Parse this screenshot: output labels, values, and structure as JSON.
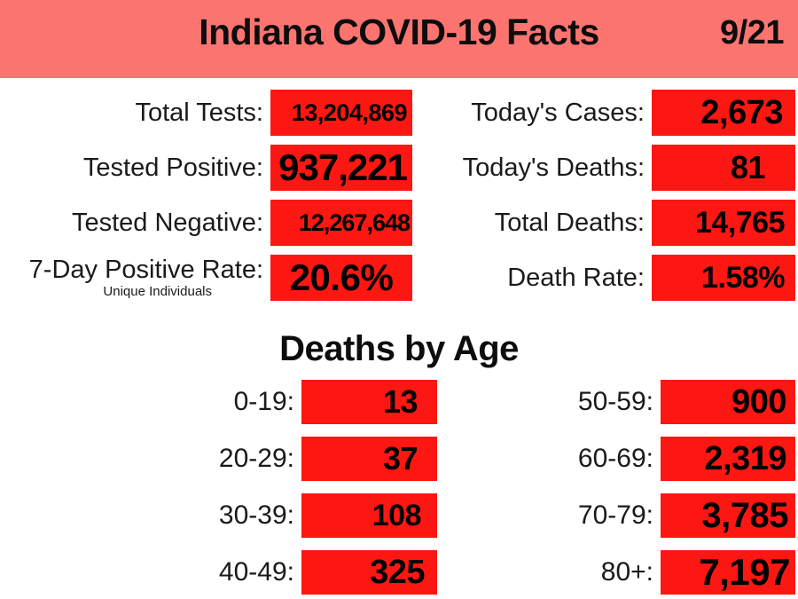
{
  "header": {
    "title": "Indiana COVID-19 Facts",
    "date": "9/21"
  },
  "stats": {
    "left": [
      {
        "label": "Total Tests:",
        "value": "13,204,869"
      },
      {
        "label": "Tested Positive:",
        "value": "937,221"
      },
      {
        "label": "Tested Negative:",
        "value": "12,267,648"
      },
      {
        "label": "7-Day Positive Rate:",
        "value": "20.6%",
        "sublabel": "Unique Individuals"
      }
    ],
    "right": [
      {
        "label": "Today's Cases:",
        "value": "2,673"
      },
      {
        "label": "Today's Deaths:",
        "value": "81"
      },
      {
        "label": "Total Deaths:",
        "value": "14,765"
      },
      {
        "label": "Death Rate:",
        "value": "1.58%"
      }
    ]
  },
  "deaths_by_age": {
    "title": "Deaths by Age",
    "left": [
      {
        "label": "0-19:",
        "value": "13"
      },
      {
        "label": "20-29:",
        "value": "37"
      },
      {
        "label": "30-39:",
        "value": "108"
      },
      {
        "label": "40-49:",
        "value": "325"
      }
    ],
    "right": [
      {
        "label": "50-59:",
        "value": "900"
      },
      {
        "label": "60-69:",
        "value": "2,319"
      },
      {
        "label": "70-79:",
        "value": "3,785"
      },
      {
        "label": "80+:",
        "value": "7,197"
      }
    ]
  },
  "colors": {
    "banner": "#fc7470",
    "value_box": "#fc1712",
    "text": "#0d0d0d"
  }
}
